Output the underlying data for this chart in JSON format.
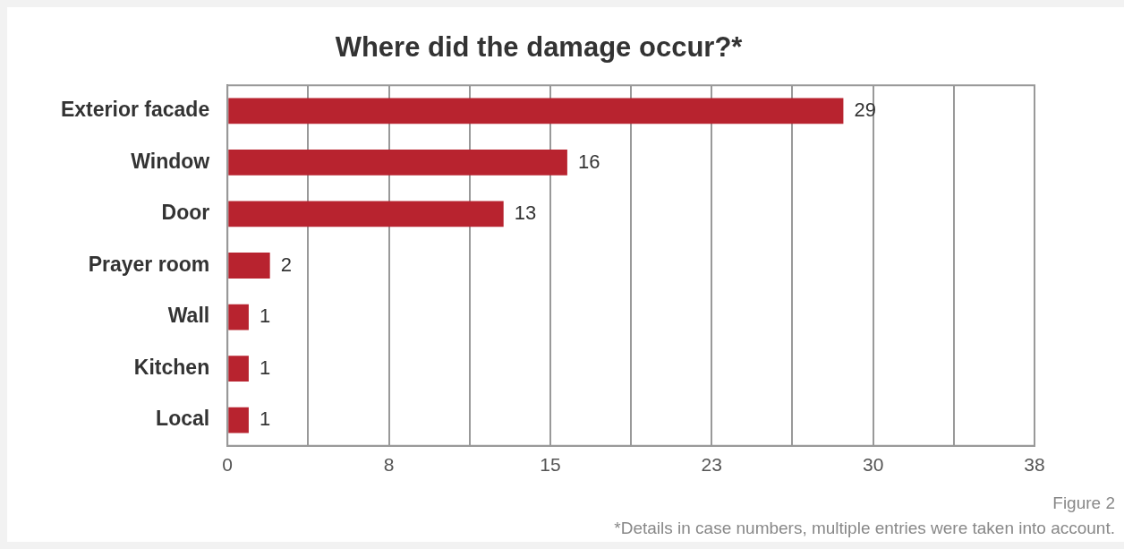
{
  "chart_data": {
    "type": "bar",
    "orientation": "horizontal",
    "title": "Where did the damage occur?*",
    "categories": [
      "Exterior facade",
      "Window",
      "Door",
      "Prayer room",
      "Wall",
      "Kitchen",
      "Local"
    ],
    "values": [
      29,
      16,
      13,
      2,
      1,
      1,
      1
    ],
    "color": "#b8232f",
    "data_labels": true,
    "grid": "x",
    "legend": false,
    "xlim": [
      0,
      38
    ],
    "xticks": [
      0,
      {
        "value": 3.8,
        "label": null
      },
      {
        "value": 7.6,
        "label": "8"
      },
      {
        "value": 11.4,
        "label": null
      },
      {
        "value": 15.2,
        "label": "15"
      },
      {
        "value": 19,
        "label": null
      },
      {
        "value": 22.8,
        "label": "23"
      },
      {
        "value": 26.6,
        "label": null
      },
      {
        "value": 30.4,
        "label": "30"
      },
      {
        "value": 34.2,
        "label": null
      },
      38
    ],
    "annotations": [
      "Figure 2",
      "*Details in case numbers, multiple entries were taken into account."
    ]
  }
}
